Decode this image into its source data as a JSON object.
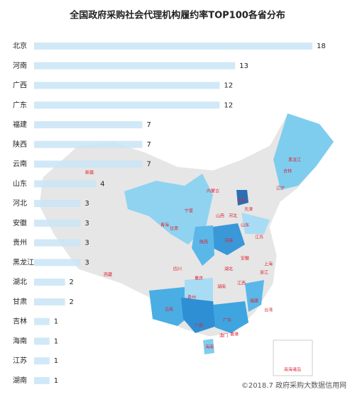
{
  "chart_data": {
    "type": "bar",
    "orientation": "horizontal",
    "title": "全国政府采购社会代理机构履约率TOP100各省分布",
    "categories": [
      "北京",
      "河南",
      "广西",
      "广东",
      "福建",
      "陕西",
      "云南",
      "山东",
      "河北",
      "安徽",
      "贵州",
      "黑龙江",
      "湖北",
      "甘肃",
      "吉林",
      "海南",
      "江苏",
      "湖南"
    ],
    "values": [
      18,
      13,
      12,
      12,
      7,
      7,
      7,
      4,
      3,
      3,
      3,
      3,
      2,
      2,
      1,
      1,
      1,
      1
    ],
    "color": "#c9e4f6",
    "xlim": [
      0,
      18
    ],
    "map_labels": [
      "新疆",
      "西藏",
      "青海",
      "甘肃",
      "内蒙古",
      "黑龙江",
      "吉林",
      "辽宁",
      "北京",
      "天津",
      "河北",
      "山西",
      "山东",
      "宁夏",
      "陕西",
      "河南",
      "江苏",
      "安徽",
      "湖北",
      "重庆",
      "四川",
      "上海",
      "浙江",
      "江西",
      "湖南",
      "贵州",
      "云南",
      "广西",
      "广东",
      "福建",
      "台湾",
      "香港",
      "澳门",
      "海南",
      "南海诸岛"
    ],
    "footer": "©2018.7 政府采购大数据信用网"
  }
}
